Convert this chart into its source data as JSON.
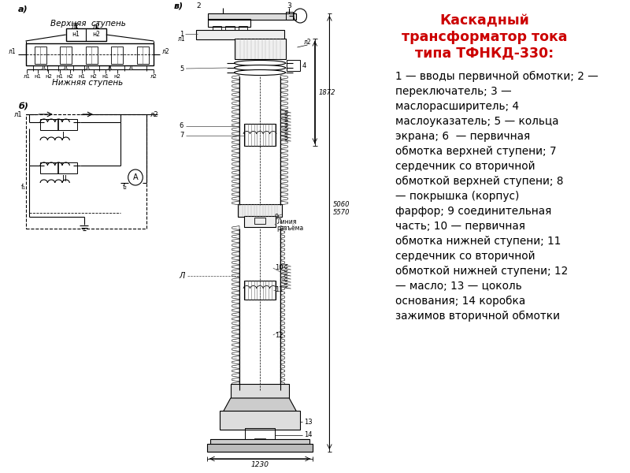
{
  "background_color": "#ffffff",
  "title_text": "Каскадный\nтрансформатор тока\nтипа ТФНКД-330:",
  "title_color": "#cc0000",
  "title_fontsize": 12.5,
  "description_text": "1 — вводы первичной обмотки; 2 —\nпереключатель; 3 —\nмаслорасширитель; 4\nмаслоуказатель; 5 — кольца\nэкрана; 6  — первичная\nобмотка верхней ступени; 7\nсердечник со вторичной\nобмоткой верхней ступени; 8\n— покрышка (корпус)\nфарфор; 9 соединительная\nчасть; 10 — первичная\nобмотка нижней ступени; 11\nсердечник со вторичной\nобмоткой нижней ступени; 12\n— масло; 13 — цоколь\nоснования; 14 коробка\nзажимов вторичной обмотки",
  "description_color": "#000000",
  "description_fontsize": 9.8,
  "label_a": "а)",
  "label_b": "б)",
  "label_v": "в)",
  "top_label": "Верхняя  ступень",
  "bottom_label": "Нижняя ступень",
  "dim_1872": "1872",
  "dim_5060": "5060",
  "dim_5570": "5570",
  "dim_1230": "1230"
}
